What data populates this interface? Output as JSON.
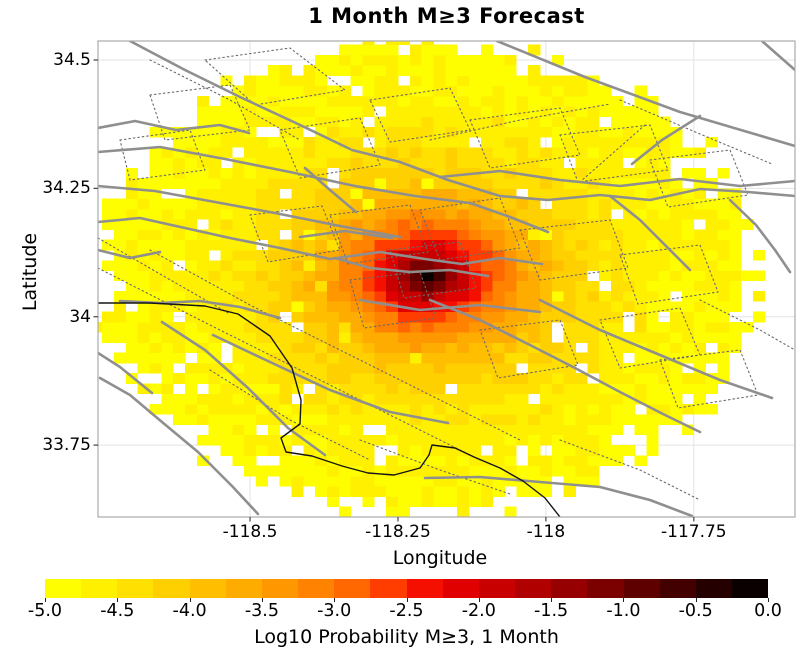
{
  "chart_data": {
    "type": "heatmap",
    "title": "1 Month M≥3 Forecast",
    "xlabel": "Longitude",
    "ylabel": "Latitude",
    "xlim": [
      -118.757,
      -117.579
    ],
    "ylim": [
      33.61,
      34.537
    ],
    "grid": true,
    "grid_color": "#e3e3e3",
    "frame_color": "#ababab",
    "tick_color": "#444444",
    "x_ticks": [
      {
        "value": -118.5,
        "label": "-118.5"
      },
      {
        "value": -118.25,
        "label": "-118.25"
      },
      {
        "value": -118,
        "label": "-118"
      },
      {
        "value": -117.75,
        "label": "-117.75"
      }
    ],
    "y_ticks": [
      {
        "value": 34.5,
        "label": "34.5"
      },
      {
        "value": 34.25,
        "label": "34.25"
      },
      {
        "value": 34,
        "label": "34"
      },
      {
        "value": 33.75,
        "label": "33.75"
      }
    ],
    "heatmap": {
      "description": "Log10 probability of M>=3 earthquake per 0.02 degree cell; radially decaying from peak near downtown Los Angeles, circular forecast footprint",
      "center_lon": -118.2,
      "center_lat": 34.08,
      "peak_value": -0.15,
      "value_base": -4.9,
      "value_amp": 4.7,
      "value_sigma": 0.11,
      "radius_deg": 0.455,
      "radius_jitter": 0.05,
      "cell_deg": 0.02,
      "lon_start": -118.77,
      "lat_start": 33.59,
      "n_cols": 60,
      "n_rows": 48,
      "cos_lat": 0.829,
      "noise": 0.3,
      "hole_prob": 0.06,
      "hole_dip": 0.85,
      "hole_threshold": -3.6,
      "seed": 7
    },
    "colorbar": {
      "label": "Log10 Probability M≥3, 1 Month",
      "vmin": -5.0,
      "vmax": 0.0,
      "bin_size": 0.25,
      "ticks": [
        "-5.0",
        "-4.5",
        "-4.0",
        "-3.5",
        "-3.0",
        "-2.5",
        "-2.0",
        "-1.5",
        "-1.0",
        "-0.5",
        "0.0"
      ],
      "colors": [
        "#FFFE00",
        "#FFF000",
        "#FFE000",
        "#FFD000",
        "#FFBE00",
        "#FFAC00",
        "#FF9800",
        "#FF8200",
        "#FF6700",
        "#FF3D00",
        "#F50F00",
        "#E00000",
        "#C90000",
        "#B00000",
        "#960000",
        "#7B0000",
        "#5F0000",
        "#420000",
        "#240000",
        "#0A0000"
      ]
    },
    "overlays": {
      "solid_color": "#8f8f8f",
      "dotted_color": "#6a6a6a",
      "coast_color": "#151515",
      "solid_faults": [
        [
          130,
          41,
          185,
          70,
          240,
          97,
          298,
          124,
          350,
          149
        ],
        [
          497,
          41,
          585,
          77,
          680,
          112,
          795,
          146
        ],
        [
          98,
          128,
          135,
          121,
          176,
          130,
          220,
          125,
          249,
          133
        ],
        [
          98,
          152,
          160,
          147,
          225,
          159,
          290,
          172,
          355,
          186,
          415,
          196,
          470,
          203
        ],
        [
          98,
          186,
          155,
          191,
          215,
          202,
          275,
          213,
          340,
          226,
          400,
          237
        ],
        [
          98,
          222,
          140,
          218,
          185,
          228,
          230,
          238,
          280,
          248,
          330,
          259,
          380,
          252,
          425,
          259,
          462,
          264,
          500,
          258,
          542,
          264
        ],
        [
          352,
          150,
          400,
          162,
          448,
          180,
          500,
          196,
          548,
          200,
          600,
          195,
          650,
          200,
          700,
          189,
          748,
          192,
          795,
          196
        ],
        [
          440,
          177,
          500,
          171,
          560,
          180,
          620,
          186,
          680,
          179,
          740,
          186,
          795,
          181
        ],
        [
          300,
          237,
          345,
          231,
          392,
          238
        ],
        [
          162,
          322,
          205,
          350,
          248,
          388,
          288,
          428,
          325,
          455
        ],
        [
          100,
          378,
          130,
          395,
          162,
          422,
          198,
          452,
          232,
          486,
          258,
          514
        ],
        [
          98,
          353,
          120,
          367,
          152,
          393
        ],
        [
          540,
          300,
          600,
          330,
          660,
          355,
          720,
          380,
          772,
          398
        ],
        [
          430,
          300,
          480,
          320,
          530,
          345,
          575,
          368,
          620,
          392,
          665,
          415,
          700,
          432
        ],
        [
          213,
          335,
          270,
          362,
          330,
          390,
          390,
          412,
          448,
          423
        ],
        [
          305,
          168,
          330,
          190,
          356,
          212
        ],
        [
          470,
          203,
          510,
          217,
          548,
          232
        ],
        [
          425,
          478,
          480,
          477,
          540,
          482,
          600,
          487,
          650,
          500,
          692,
          516
        ],
        [
          610,
          196,
          640,
          220,
          666,
          246,
          690,
          270
        ],
        [
          700,
          116,
          662,
          140,
          632,
          164
        ],
        [
          120,
          301,
          160,
          303,
          200,
          301,
          240,
          307,
          280,
          318
        ],
        [
          730,
          200,
          756,
          225,
          775,
          250,
          790,
          272
        ],
        [
          762,
          41,
          795,
          70
        ],
        [
          335,
          258,
          370,
          268,
          410,
          272,
          450,
          270,
          488,
          276
        ],
        [
          360,
          300,
          420,
          310,
          480,
          305,
          540,
          312
        ],
        [
          98,
          250,
          130,
          258,
          160,
          252
        ]
      ],
      "dotted_faults": [
        [
          205,
          60,
          290,
          48,
          345,
          90,
          255,
          105,
          205,
          60
        ],
        [
          150,
          95,
          230,
          85,
          250,
          130,
          165,
          140,
          150,
          95
        ],
        [
          120,
          140,
          190,
          130,
          205,
          170,
          130,
          180,
          120,
          140
        ],
        [
          280,
          130,
          360,
          118,
          380,
          165,
          300,
          178,
          280,
          130
        ],
        [
          370,
          100,
          450,
          88,
          470,
          130,
          390,
          142,
          370,
          100
        ],
        [
          470,
          120,
          560,
          108,
          580,
          155,
          490,
          168,
          470,
          120
        ],
        [
          560,
          135,
          650,
          125,
          668,
          170,
          578,
          182,
          560,
          135
        ],
        [
          650,
          160,
          730,
          150,
          748,
          195,
          668,
          207,
          650,
          160
        ],
        [
          420,
          210,
          500,
          198,
          520,
          248,
          440,
          260,
          420,
          210
        ],
        [
          520,
          230,
          610,
          220,
          628,
          268,
          540,
          280,
          520,
          230
        ],
        [
          620,
          255,
          700,
          245,
          718,
          292,
          638,
          304,
          620,
          255
        ],
        [
          330,
          215,
          410,
          205,
          428,
          252,
          348,
          264,
          330,
          215
        ],
        [
          250,
          215,
          322,
          206,
          340,
          250,
          268,
          262,
          250,
          215
        ],
        [
          600,
          320,
          680,
          308,
          700,
          355,
          620,
          368,
          600,
          320
        ],
        [
          660,
          360,
          740,
          350,
          758,
          395,
          678,
          408,
          660,
          360
        ],
        [
          480,
          330,
          560,
          320,
          578,
          365,
          498,
          378,
          480,
          330
        ],
        [
          390,
          250,
          460,
          242,
          476,
          288,
          404,
          298,
          390,
          250
        ],
        [
          350,
          280,
          420,
          272,
          436,
          318,
          364,
          328,
          350,
          280
        ],
        [
          98,
          268,
          200,
          320,
          300,
          370,
          400,
          420,
          480,
          460
        ],
        [
          150,
          250,
          250,
          305,
          350,
          355,
          450,
          405,
          520,
          440
        ],
        [
          98,
          238,
          160,
          274,
          230,
          314
        ],
        [
          620,
          100,
          700,
          134,
          772,
          164
        ],
        [
          700,
          300,
          760,
          330,
          795,
          350
        ],
        [
          560,
          440,
          640,
          470,
          700,
          500
        ],
        [
          360,
          440,
          440,
          470,
          510,
          494
        ],
        [
          150,
          60,
          230,
          100,
          300,
          140
        ],
        [
          645,
          125,
          580,
          182
        ],
        [
          210,
          370,
          290,
          420,
          370,
          460
        ],
        [
          430,
          140,
          520,
          120,
          610,
          104
        ]
      ],
      "coastline": [
        [
          98,
          303,
          150,
          303,
          205,
          306,
          238,
          314,
          270,
          336,
          292,
          368,
          301,
          400,
          300,
          424,
          281,
          438,
          286,
          452,
          312,
          456,
          342,
          466,
          368,
          473,
          394,
          475,
          420,
          468,
          429,
          455,
          432,
          445,
          455,
          448,
          474,
          457,
          500,
          468,
          523,
          481,
          545,
          498,
          560,
          517
        ]
      ]
    }
  }
}
